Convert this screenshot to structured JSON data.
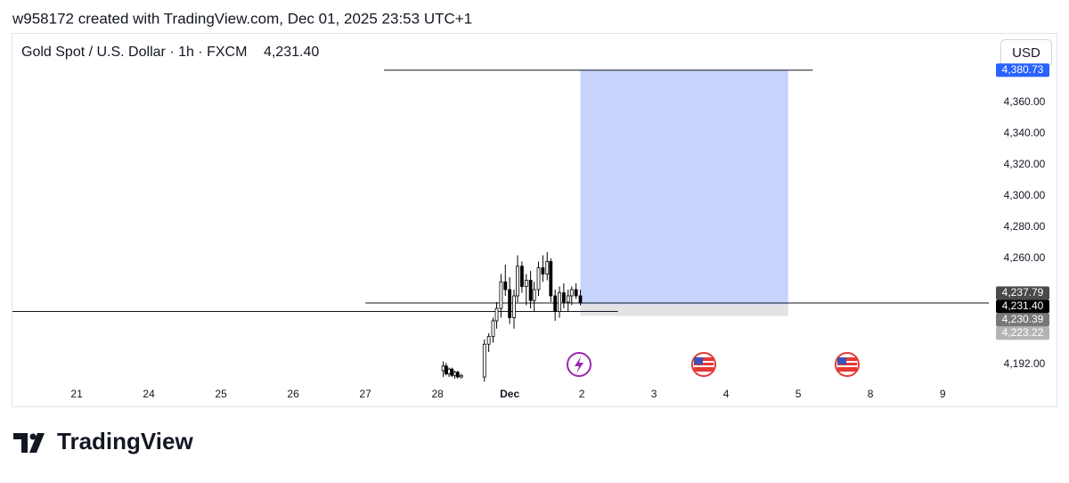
{
  "chart_data": {
    "type": "candlestick",
    "caption": "w958172 created with TradingView.com, Dec 01, 2025 23:53 UTC+1",
    "title": "Gold Spot / U.S. Dollar · 1h · FXCM",
    "last_price": "4,231.40",
    "currency": "USD",
    "logo": "TradingView",
    "xlim": [
      -0.89,
      12.64
    ],
    "xticks": [
      {
        "value": 0,
        "label": "21"
      },
      {
        "value": 1,
        "label": "24"
      },
      {
        "value": 2,
        "label": "25"
      },
      {
        "value": 3,
        "label": "26"
      },
      {
        "value": 4,
        "label": "27"
      },
      {
        "value": 5,
        "label": "28"
      },
      {
        "value": 6,
        "label": "Dec"
      },
      {
        "value": 7,
        "label": "2"
      },
      {
        "value": 8,
        "label": "3"
      },
      {
        "value": 9,
        "label": "4"
      },
      {
        "value": 10,
        "label": "5"
      },
      {
        "value": 11,
        "label": "8"
      },
      {
        "value": 12,
        "label": "9"
      }
    ],
    "ylim": [
      4180,
      4404
    ],
    "yticks": [
      {
        "value": 4360,
        "label": "4,360.00"
      },
      {
        "value": 4340,
        "label": "4,340.00"
      },
      {
        "value": 4320,
        "label": "4,320.00"
      },
      {
        "value": 4300,
        "label": "4,300.00"
      },
      {
        "value": 4280,
        "label": "4,280.00"
      },
      {
        "value": 4260,
        "label": "4,260.00"
      },
      {
        "value": 4192,
        "label": "4,192.00"
      }
    ],
    "x": [
      5.08,
      5.12,
      5.16,
      5.2,
      5.24,
      5.28,
      5.33,
      5.65,
      5.71,
      5.77,
      5.82,
      5.88,
      5.94,
      6.0,
      6.06,
      6.11,
      6.17,
      6.23,
      6.29,
      6.34,
      6.4,
      6.46,
      6.52,
      6.57,
      6.63,
      6.69,
      6.75,
      6.81,
      6.86,
      6.92,
      6.98
    ],
    "open": [
      4188,
      4191,
      4186,
      4189,
      4185,
      4187,
      4184,
      4184,
      4205,
      4210,
      4220,
      4228,
      4245,
      4240,
      4222,
      4236,
      4255,
      4242,
      4246,
      4233,
      4240,
      4254,
      4250,
      4258,
      4236,
      4226,
      4238,
      4232,
      4236,
      4240,
      4236
    ],
    "high": [
      4194,
      4193,
      4190,
      4190,
      4188,
      4188,
      4186,
      4208,
      4212,
      4222,
      4232,
      4250,
      4256,
      4248,
      4240,
      4262,
      4258,
      4250,
      4252,
      4245,
      4258,
      4262,
      4264,
      4260,
      4240,
      4242,
      4244,
      4240,
      4242,
      4244,
      4240
    ],
    "low": [
      4184,
      4185,
      4184,
      4184,
      4183,
      4183,
      4183,
      4181,
      4200,
      4206,
      4215,
      4222,
      4236,
      4218,
      4215,
      4232,
      4238,
      4230,
      4228,
      4226,
      4236,
      4245,
      4246,
      4232,
      4220,
      4222,
      4228,
      4226,
      4230,
      4234,
      4230
    ],
    "close": [
      4191,
      4186,
      4189,
      4185,
      4187,
      4184,
      4185,
      4205,
      4210,
      4220,
      4228,
      4245,
      4240,
      4222,
      4236,
      4255,
      4242,
      4246,
      4233,
      4240,
      4254,
      4250,
      4258,
      4236,
      4226,
      4238,
      4232,
      4236,
      4240,
      4236,
      4231.4
    ],
    "up_color": "#ffffff",
    "down_color": "#000000",
    "position": {
      "x_start": 6.98,
      "x_end": 9.86,
      "target": 4380.73,
      "entry": 4230.39,
      "stop": 4223.22,
      "profit_color": "#c6d4fb",
      "loss_color": "#e3e3e3"
    },
    "lines": [
      {
        "value": 4380.73,
        "x_start": 4.26,
        "x_end": 10.2
      },
      {
        "value": 4231.4,
        "x_start": 4.0,
        "x_end": 12.64
      },
      {
        "value": 4226,
        "x_start": -0.89,
        "x_end": 7.5
      }
    ],
    "price_labels": [
      {
        "value": 4380.73,
        "label": "4,380.73",
        "color": "#2962ff"
      },
      {
        "value": 4237.79,
        "label": "4,237.79",
        "color": "#4a4a4a"
      },
      {
        "value": 4231.4,
        "label": "4,231.40",
        "color": "#000000"
      },
      {
        "value": 4230.39,
        "label": "4,230.39",
        "color": "#787878"
      },
      {
        "value": 4223.22,
        "label": "4,223.22",
        "color": "#b4b4b4"
      }
    ]
  }
}
